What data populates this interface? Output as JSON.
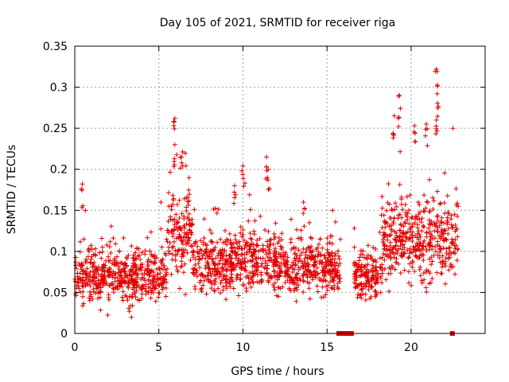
{
  "chart_data": {
    "type": "scatter",
    "title": "Day 105 of 2021, SRMTID for receiver riga",
    "xlabel": "GPS time / hours",
    "ylabel": "SRMTID / TECUs",
    "xlim": [
      0,
      24.4
    ],
    "ylim": [
      0,
      0.35
    ],
    "xticks": [
      0,
      5,
      10,
      15,
      20
    ],
    "xtick_labels": [
      "0",
      "5",
      "10",
      "15",
      "20"
    ],
    "yticks": [
      0,
      0.05,
      0.1,
      0.15,
      0.2,
      0.25,
      0.3,
      0.35
    ],
    "ytick_labels": [
      "0",
      "0.05",
      "0.1",
      "0.15",
      "0.2",
      "0.25",
      "0.3",
      "0.35"
    ],
    "grid": true,
    "marker": "+",
    "color": "#e00000",
    "series": [
      {
        "name": "SRMTID",
        "segments": [
          {
            "x_start": 0.0,
            "x_end": 5.5,
            "mean": 0.07,
            "spread": 0.03
          },
          {
            "x_start": 5.5,
            "x_end": 7.0,
            "mean": 0.12,
            "spread": 0.05
          },
          {
            "x_start": 7.0,
            "x_end": 9.3,
            "mean": 0.085,
            "spread": 0.03
          },
          {
            "x_start": 9.3,
            "x_end": 12.0,
            "mean": 0.09,
            "spread": 0.035
          },
          {
            "x_start": 12.0,
            "x_end": 15.8,
            "mean": 0.08,
            "spread": 0.03
          },
          {
            "x_start": 16.6,
            "x_end": 18.2,
            "mean": 0.07,
            "spread": 0.025
          },
          {
            "x_start": 18.2,
            "x_end": 22.8,
            "mean": 0.115,
            "spread": 0.045
          }
        ],
        "peaks": [
          {
            "x": 0.45,
            "y": 0.182
          },
          {
            "x": 5.95,
            "y": 0.262
          },
          {
            "x": 5.95,
            "y": 0.23
          },
          {
            "x": 6.35,
            "y": 0.215
          },
          {
            "x": 9.5,
            "y": 0.18
          },
          {
            "x": 10.0,
            "y": 0.204
          },
          {
            "x": 11.4,
            "y": 0.215
          },
          {
            "x": 11.5,
            "y": 0.2
          },
          {
            "x": 13.6,
            "y": 0.16
          },
          {
            "x": 19.3,
            "y": 0.29
          },
          {
            "x": 19.0,
            "y": 0.265
          },
          {
            "x": 20.2,
            "y": 0.253
          },
          {
            "x": 20.9,
            "y": 0.255
          },
          {
            "x": 21.5,
            "y": 0.322
          },
          {
            "x": 21.55,
            "y": 0.292
          },
          {
            "x": 21.5,
            "y": 0.26
          }
        ],
        "zero_points": [
          15.7,
          15.9,
          16.1,
          16.35,
          16.45,
          22.45
        ]
      }
    ]
  }
}
